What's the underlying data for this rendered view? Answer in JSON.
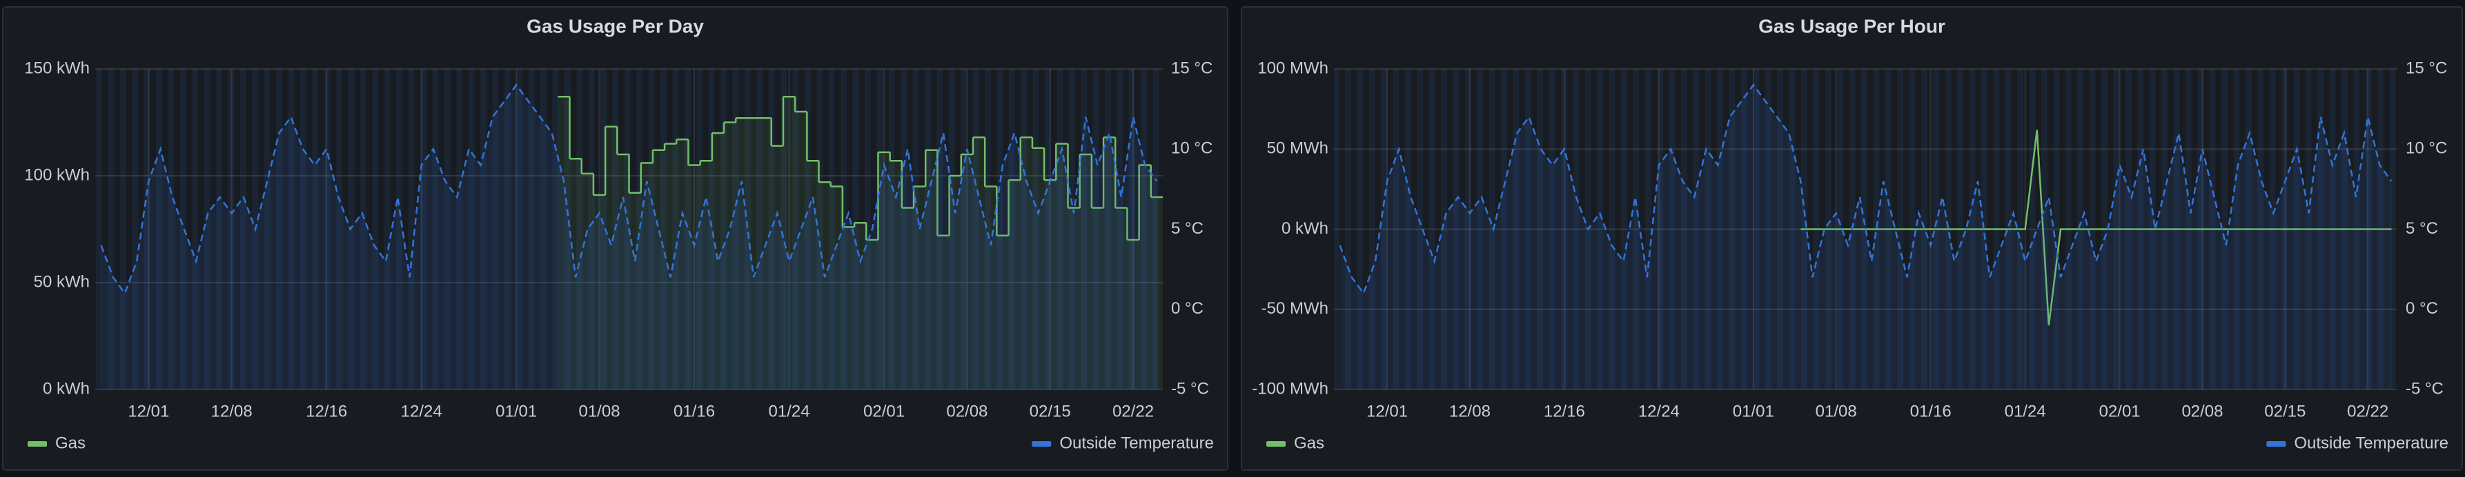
{
  "chart_data": [
    {
      "type": "line",
      "title": "Gas Usage Per Day",
      "x": [
        "11/27",
        "11/28",
        "11/29",
        "11/30",
        "12/01",
        "12/02",
        "12/03",
        "12/04",
        "12/05",
        "12/06",
        "12/07",
        "12/08",
        "12/09",
        "12/10",
        "12/11",
        "12/12",
        "12/13",
        "12/14",
        "12/15",
        "12/16",
        "12/17",
        "12/18",
        "12/19",
        "12/20",
        "12/21",
        "12/22",
        "12/23",
        "12/24",
        "12/25",
        "12/26",
        "12/27",
        "12/28",
        "12/29",
        "12/30",
        "12/31",
        "01/01",
        "01/02",
        "01/03",
        "01/04",
        "01/05",
        "01/06",
        "01/07",
        "01/08",
        "01/09",
        "01/10",
        "01/11",
        "01/12",
        "01/13",
        "01/14",
        "01/15",
        "01/16",
        "01/17",
        "01/18",
        "01/19",
        "01/20",
        "01/21",
        "01/22",
        "01/23",
        "01/24",
        "01/25",
        "01/26",
        "01/27",
        "01/28",
        "01/29",
        "01/30",
        "01/31",
        "02/01",
        "02/02",
        "02/03",
        "02/04",
        "02/05",
        "02/06",
        "02/07",
        "02/08",
        "02/09",
        "02/10",
        "02/11",
        "02/12",
        "02/13",
        "02/14",
        "02/15",
        "02/16",
        "02/17",
        "02/18",
        "02/19",
        "02/20",
        "02/21",
        "02/22",
        "02/23",
        "02/24"
      ],
      "xticks": [
        "12/01",
        "12/08",
        "12/16",
        "12/24",
        "01/01",
        "01/08",
        "01/16",
        "01/24",
        "02/01",
        "02/08",
        "02/15",
        "02/22"
      ],
      "ylim": [
        0,
        150
      ],
      "yticks": [
        {
          "value": 0,
          "label": "0 kWh"
        },
        {
          "value": 50,
          "label": "50 kWh"
        },
        {
          "value": 100,
          "label": "100 kWh"
        },
        {
          "value": 150,
          "label": "150 kWh"
        }
      ],
      "y2lim": [
        -5,
        15
      ],
      "y2ticks": [
        {
          "value": -5,
          "label": "-5 °C"
        },
        {
          "value": 0,
          "label": "0 °C"
        },
        {
          "value": 5,
          "label": "5 °C"
        },
        {
          "value": 10,
          "label": "10 °C"
        },
        {
          "value": 15,
          "label": "15 °C"
        }
      ],
      "grid": true,
      "series": [
        {
          "name": "Gas",
          "color": "#73bf69",
          "step": true,
          "values": [
            null,
            null,
            null,
            null,
            null,
            null,
            null,
            null,
            null,
            null,
            null,
            null,
            null,
            null,
            null,
            null,
            null,
            null,
            null,
            null,
            null,
            null,
            null,
            null,
            null,
            null,
            null,
            null,
            null,
            null,
            null,
            null,
            null,
            null,
            null,
            null,
            null,
            null,
            null,
            137,
            108,
            101,
            91,
            123,
            110,
            92,
            106,
            112,
            115,
            117,
            105,
            107,
            120,
            125,
            127,
            127,
            127,
            114,
            137,
            130,
            107,
            97,
            95,
            76,
            78,
            70,
            111,
            107,
            85,
            95,
            112,
            72,
            100,
            110,
            118,
            95,
            72,
            98,
            118,
            113,
            98,
            115,
            85,
            110,
            85,
            118,
            85,
            70,
            105,
            90
          ]
        },
        {
          "name": "Outside Temperature",
          "color": "#3274d9",
          "axis": "y2",
          "dashed": true,
          "values": [
            4,
            2,
            1,
            3,
            8,
            10,
            7,
            5,
            3,
            6,
            7,
            6,
            7,
            5,
            8,
            11,
            12,
            10,
            9,
            10,
            7,
            5,
            6,
            4,
            3,
            7,
            2,
            9,
            10,
            8,
            7,
            10,
            9,
            12,
            13,
            14,
            13,
            12,
            11,
            8,
            2,
            5,
            6,
            4,
            7,
            3,
            8,
            5,
            2,
            6,
            4,
            7,
            3,
            5,
            8,
            2,
            4,
            6,
            3,
            5,
            7,
            2,
            4,
            6,
            3,
            5,
            9,
            7,
            10,
            5,
            8,
            11,
            6,
            10,
            7,
            4,
            9,
            11,
            8,
            6,
            8,
            10,
            6,
            12,
            9,
            11,
            7,
            12,
            9,
            8
          ]
        }
      ]
    },
    {
      "type": "line",
      "title": "Gas Usage Per Hour",
      "x": [
        "11/27",
        "11/28",
        "11/29",
        "11/30",
        "12/01",
        "12/02",
        "12/03",
        "12/04",
        "12/05",
        "12/06",
        "12/07",
        "12/08",
        "12/09",
        "12/10",
        "12/11",
        "12/12",
        "12/13",
        "12/14",
        "12/15",
        "12/16",
        "12/17",
        "12/18",
        "12/19",
        "12/20",
        "12/21",
        "12/22",
        "12/23",
        "12/24",
        "12/25",
        "12/26",
        "12/27",
        "12/28",
        "12/29",
        "12/30",
        "12/31",
        "01/01",
        "01/02",
        "01/03",
        "01/04",
        "01/05",
        "01/06",
        "01/07",
        "01/08",
        "01/09",
        "01/10",
        "01/11",
        "01/12",
        "01/13",
        "01/14",
        "01/15",
        "01/16",
        "01/17",
        "01/18",
        "01/19",
        "01/20",
        "01/21",
        "01/22",
        "01/23",
        "01/24",
        "01/25",
        "01/26",
        "01/27",
        "01/28",
        "01/29",
        "01/30",
        "01/31",
        "02/01",
        "02/02",
        "02/03",
        "02/04",
        "02/05",
        "02/06",
        "02/07",
        "02/08",
        "02/09",
        "02/10",
        "02/11",
        "02/12",
        "02/13",
        "02/14",
        "02/15",
        "02/16",
        "02/17",
        "02/18",
        "02/19",
        "02/20",
        "02/21",
        "02/22",
        "02/23",
        "02/24"
      ],
      "xticks": [
        "12/01",
        "12/08",
        "12/16",
        "12/24",
        "01/01",
        "01/08",
        "01/16",
        "01/24",
        "02/01",
        "02/08",
        "02/15",
        "02/22"
      ],
      "ylim": [
        -100,
        100
      ],
      "yticks": [
        {
          "value": -100,
          "label": "-100 MWh"
        },
        {
          "value": -50,
          "label": "-50 MWh"
        },
        {
          "value": 0,
          "label": "0 kWh"
        },
        {
          "value": 50,
          "label": "50 MWh"
        },
        {
          "value": 100,
          "label": "100 MWh"
        }
      ],
      "y2lim": [
        -5,
        15
      ],
      "y2ticks": [
        {
          "value": -5,
          "label": "-5 °C"
        },
        {
          "value": 0,
          "label": "0 °C"
        },
        {
          "value": 5,
          "label": "5 °C"
        },
        {
          "value": 10,
          "label": "10 °C"
        },
        {
          "value": 15,
          "label": "15 °C"
        }
      ],
      "grid": true,
      "series": [
        {
          "name": "Gas",
          "color": "#73bf69",
          "values": [
            null,
            null,
            null,
            null,
            null,
            null,
            null,
            null,
            null,
            null,
            null,
            null,
            null,
            null,
            null,
            null,
            null,
            null,
            null,
            null,
            null,
            null,
            null,
            null,
            null,
            null,
            null,
            null,
            null,
            null,
            null,
            null,
            null,
            null,
            null,
            null,
            null,
            null,
            null,
            0,
            0,
            0,
            0,
            0,
            0,
            0,
            0,
            0,
            0,
            0,
            0,
            0,
            0,
            0,
            0,
            0,
            0,
            0,
            0,
            62,
            -60,
            0,
            0,
            0,
            0,
            0,
            0,
            0,
            0,
            0,
            0,
            0,
            0,
            0,
            0,
            0,
            0,
            0,
            0,
            0,
            0,
            0,
            0,
            0,
            0,
            0,
            0,
            0,
            0,
            0
          ]
        },
        {
          "name": "Outside Temperature",
          "color": "#3274d9",
          "axis": "y2",
          "dashed": true,
          "values": [
            4,
            2,
            1,
            3,
            8,
            10,
            7,
            5,
            3,
            6,
            7,
            6,
            7,
            5,
            8,
            11,
            12,
            10,
            9,
            10,
            7,
            5,
            6,
            4,
            3,
            7,
            2,
            9,
            10,
            8,
            7,
            10,
            9,
            12,
            13,
            14,
            13,
            12,
            11,
            8,
            2,
            5,
            6,
            4,
            7,
            3,
            8,
            5,
            2,
            6,
            4,
            7,
            3,
            5,
            8,
            2,
            4,
            6,
            3,
            5,
            7,
            2,
            4,
            6,
            3,
            5,
            9,
            7,
            10,
            5,
            8,
            11,
            6,
            10,
            7,
            4,
            9,
            11,
            8,
            6,
            8,
            10,
            6,
            12,
            9,
            11,
            7,
            12,
            9,
            8
          ]
        }
      ]
    }
  ]
}
